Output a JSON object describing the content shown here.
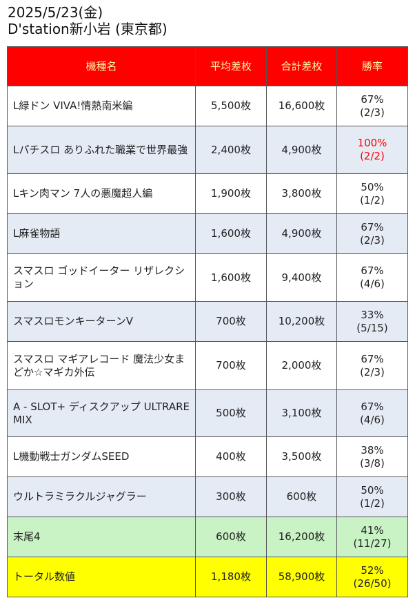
{
  "header": {
    "date": "2025/5/23(金)",
    "store": "D'station新小岩 (東京都)"
  },
  "table": {
    "columns": [
      "機種名",
      "平均差枚",
      "合計差枚",
      "勝率"
    ],
    "rows": [
      {
        "name": "L緑ドン VIVA!情熱南米編",
        "avg": "5,500枚",
        "total": "16,600枚",
        "rate": "67%",
        "record": "(2/3)"
      },
      {
        "name": "Lパチスロ ありふれた職業で世界最強",
        "avg": "2,400枚",
        "total": "4,900枚",
        "rate": "100%",
        "record": "(2/2)"
      },
      {
        "name": "Lキン肉マン 7人の悪魔超人編",
        "avg": "1,900枚",
        "total": "3,800枚",
        "rate": "50%",
        "record": "(1/2)"
      },
      {
        "name": "L麻雀物語",
        "avg": "1,600枚",
        "total": "4,900枚",
        "rate": "67%",
        "record": "(2/3)"
      },
      {
        "name": "スマスロ ゴッドイーター リザレクション",
        "avg": "1,600枚",
        "total": "9,400枚",
        "rate": "67%",
        "record": "(4/6)"
      },
      {
        "name": "スマスロモンキーターンV",
        "avg": "700枚",
        "total": "10,200枚",
        "rate": "33%",
        "record": "(5/15)"
      },
      {
        "name": "スマスロ マギアレコード 魔法少女まどか☆マギカ外伝",
        "avg": "700枚",
        "total": "2,000枚",
        "rate": "67%",
        "record": "(2/3)"
      },
      {
        "name": "A - SLOT+ ディスクアップ ULTRAREMIX",
        "avg": "500枚",
        "total": "3,100枚",
        "rate": "67%",
        "record": "(4/6)"
      },
      {
        "name": "L機動戦士ガンダムSEED",
        "avg": "400枚",
        "total": "3,500枚",
        "rate": "38%",
        "record": "(3/8)"
      },
      {
        "name": "ウルトラミラクルジャグラー",
        "avg": "300枚",
        "total": "600枚",
        "rate": "50%",
        "record": "(1/2)"
      }
    ],
    "summary": [
      {
        "name": "末尾4",
        "avg": "600枚",
        "total": "16,200枚",
        "rate": "41%",
        "record": "(11/27)"
      },
      {
        "name": "トータル数値",
        "avg": "1,180枚",
        "total": "58,900枚",
        "rate": "52%",
        "record": "(26/50)"
      }
    ]
  },
  "colors": {
    "header_bg": "#ff0000",
    "header_text": "#fff3a0",
    "row_alt_bg": "#e4ebf5",
    "suffix_row_bg": "#c9f2c5",
    "total_row_bg": "#ffff00",
    "full_win_text": "#ff0000"
  }
}
